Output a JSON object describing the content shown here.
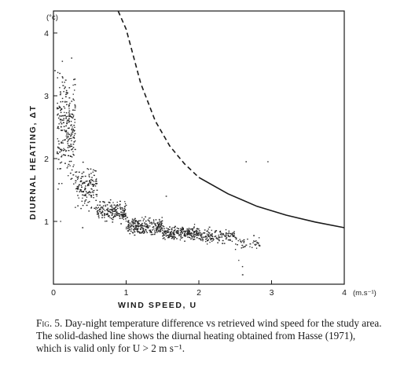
{
  "chart_data": {
    "type": "scatter",
    "xlabel": "WIND SPEED, U",
    "ylabel": "DIURNAL HEATING, ΔT",
    "x_unit": "(m.s⁻¹)",
    "y_unit": "(°c)",
    "xlim": [
      0,
      4
    ],
    "ylim": [
      0,
      4.35
    ],
    "x_ticks": [
      "0",
      "1",
      "2",
      "3",
      "4"
    ],
    "y_ticks": [
      "1",
      "2",
      "3",
      "4"
    ],
    "grid": false,
    "series": [
      {
        "style": "points",
        "density_bands": [
          {
            "x_range": [
              0.05,
              0.3
            ],
            "y_mean": 2.5,
            "y_spread": 0.75,
            "count": 260
          },
          {
            "x_range": [
              0.3,
              0.6
            ],
            "y_mean": 1.55,
            "y_spread": 0.3,
            "count": 150
          },
          {
            "x_range": [
              0.6,
              1.0
            ],
            "y_mean": 1.15,
            "y_spread": 0.14,
            "count": 180
          },
          {
            "x_range": [
              1.0,
              1.5
            ],
            "y_mean": 0.92,
            "y_spread": 0.11,
            "count": 230
          },
          {
            "x_range": [
              1.5,
              2.0
            ],
            "y_mean": 0.82,
            "y_spread": 0.1,
            "count": 220
          },
          {
            "x_range": [
              2.0,
              2.5
            ],
            "y_mean": 0.76,
            "y_spread": 0.1,
            "count": 130
          },
          {
            "x_range": [
              2.5,
              2.85
            ],
            "y_mean": 0.66,
            "y_spread": 0.09,
            "count": 40
          }
        ],
        "outliers": [
          [
            0.02,
            3.4
          ],
          [
            0.25,
            3.6
          ],
          [
            0.1,
            1.0
          ],
          [
            2.6,
            0.15
          ],
          [
            2.6,
            0.28
          ],
          [
            2.55,
            0.38
          ],
          [
            2.65,
            1.95
          ],
          [
            2.95,
            1.95
          ],
          [
            1.55,
            1.4
          ],
          [
            0.4,
            0.9
          ]
        ]
      },
      {
        "style": "dashed",
        "x": [
          0.89,
          1.0,
          1.2,
          1.4,
          1.6,
          1.8,
          2.0
        ],
        "y": [
          4.35,
          4.06,
          3.2,
          2.6,
          2.2,
          1.92,
          1.7
        ]
      },
      {
        "style": "solid",
        "x": [
          2.0,
          2.4,
          2.8,
          3.2,
          3.6,
          4.0
        ],
        "y": [
          1.7,
          1.44,
          1.24,
          1.1,
          0.99,
          0.9
        ]
      }
    ]
  },
  "caption": {
    "label": "Fig. 5.",
    "text": " Day-night temperature difference vs retrieved wind speed for the study area. The solid-dashed line shows the diurnal heating obtained from Hasse (1971), which is valid only for U > 2 m s⁻¹."
  }
}
